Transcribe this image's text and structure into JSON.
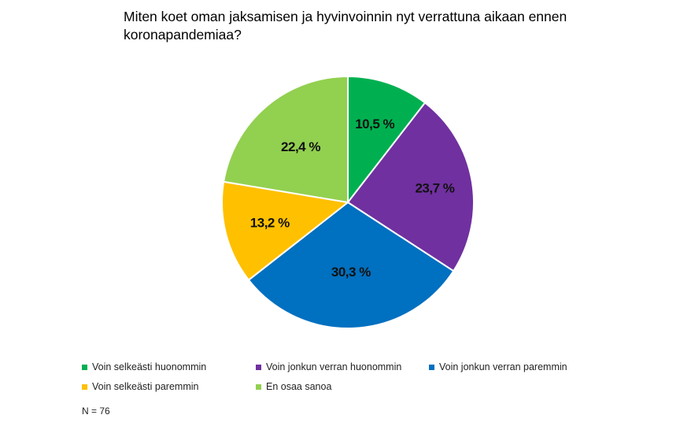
{
  "chart_data": {
    "type": "pie",
    "title": "Miten koet oman jaksamisen ja hyvinvoinnin nyt verrattuna aikaan ennen koronapandemiaa?",
    "categories": [
      "Voin selkeästi huonommin",
      "Voin jonkun verran huonommin",
      "Voin jonkun verran paremmin",
      "Voin selkeästi paremmin",
      "En osaa sanoa"
    ],
    "values": [
      10.5,
      23.7,
      30.3,
      13.2,
      22.4
    ],
    "data_labels": [
      "10,5 %",
      "23,7 %",
      "30,3 %",
      "13,2 %",
      "22,4 %"
    ],
    "colors": [
      "#00b050",
      "#7030a0",
      "#0070c0",
      "#ffc000",
      "#92d050"
    ],
    "legend_placement": "bottom",
    "note": "N = 76"
  }
}
